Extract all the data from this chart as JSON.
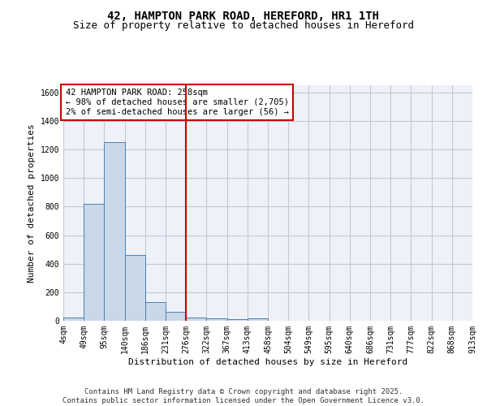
{
  "title": "42, HAMPTON PARK ROAD, HEREFORD, HR1 1TH",
  "subtitle": "Size of property relative to detached houses in Hereford",
  "xlabel": "Distribution of detached houses by size in Hereford",
  "ylabel": "Number of detached properties",
  "bar_values": [
    25,
    820,
    1250,
    460,
    130,
    60,
    25,
    15,
    10,
    15,
    0,
    0,
    0,
    0,
    0,
    0,
    0,
    0,
    0,
    0
  ],
  "categories": [
    "4sqm",
    "49sqm",
    "95sqm",
    "140sqm",
    "186sqm",
    "231sqm",
    "276sqm",
    "322sqm",
    "367sqm",
    "413sqm",
    "458sqm",
    "504sqm",
    "549sqm",
    "595sqm",
    "640sqm",
    "686sqm",
    "731sqm",
    "777sqm",
    "822sqm",
    "868sqm",
    "913sqm"
  ],
  "bar_color": "#c8d8e8",
  "bar_edge_color": "#5080b0",
  "grid_color": "#c0c8d8",
  "background_color": "#eef2f8",
  "vline_color": "#cc0000",
  "annotation_text": "42 HAMPTON PARK ROAD: 258sqm\n← 98% of detached houses are smaller (2,705)\n2% of semi-detached houses are larger (56) →",
  "annotation_box_color": "#ffffff",
  "annotation_box_edge_color": "#cc0000",
  "ylim": [
    0,
    1650
  ],
  "yticks": [
    0,
    200,
    400,
    600,
    800,
    1000,
    1200,
    1400,
    1600
  ],
  "footer_text": "Contains HM Land Registry data © Crown copyright and database right 2025.\nContains public sector information licensed under the Open Government Licence v3.0.",
  "title_fontsize": 10,
  "subtitle_fontsize": 9,
  "axis_label_fontsize": 8,
  "tick_fontsize": 7,
  "annotation_fontsize": 7.5,
  "footer_fontsize": 6.5
}
